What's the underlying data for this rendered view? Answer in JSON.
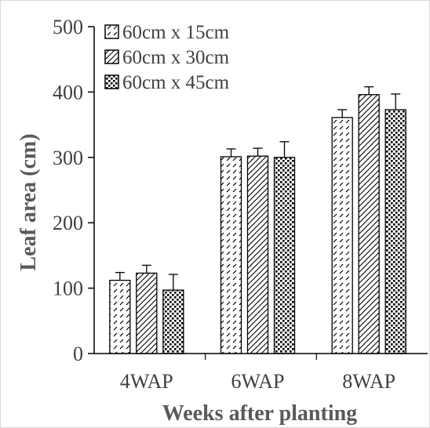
{
  "chart_data": {
    "type": "bar",
    "title": "",
    "xlabel": "Weeks after planting",
    "ylabel": "Leaf area (cm)",
    "categories": [
      "4WAP",
      "6WAP",
      "8WAP"
    ],
    "ylim": [
      0,
      500
    ],
    "yticks": [
      0,
      100,
      200,
      300,
      400,
      500
    ],
    "grid": false,
    "legend_position": "top-left",
    "series": [
      {
        "name": "60cm x 15cm",
        "values": [
          112,
          301,
          361
        ],
        "errors": [
          12,
          12,
          12
        ],
        "pattern": "dash"
      },
      {
        "name": "60cm x 30cm",
        "values": [
          123,
          302,
          396
        ],
        "errors": [
          12,
          12,
          12
        ],
        "pattern": "diagonal"
      },
      {
        "name": "60cm x 45cm",
        "values": [
          97,
          300,
          373
        ],
        "errors": [
          24,
          24,
          24
        ],
        "pattern": "dots"
      }
    ]
  }
}
